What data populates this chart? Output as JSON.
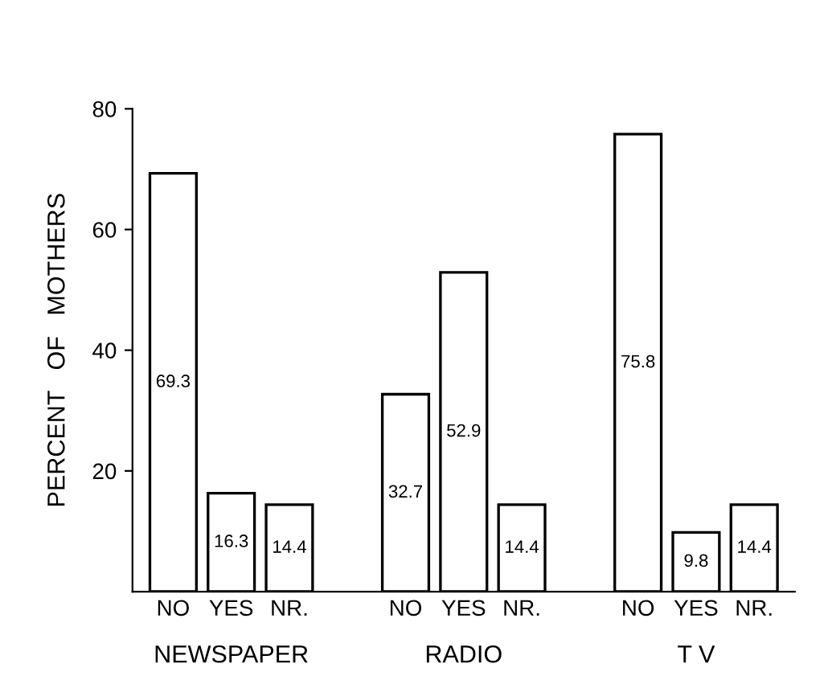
{
  "chart_data": {
    "type": "bar",
    "ylabel": "PERCENT   OF   MOTHERS",
    "categories": [
      "NO",
      "YES",
      "NR.",
      null,
      "NO",
      "YES",
      "NR.",
      null,
      "NO",
      "YES",
      "NR."
    ],
    "values": [
      69.3,
      16.3,
      14.4,
      null,
      32.7,
      52.9,
      14.4,
      null,
      75.8,
      9.8,
      14.4
    ],
    "color": "#ffffff",
    "ylim": [
      0,
      80
    ],
    "yticks": [
      20,
      40,
      60,
      80
    ],
    "data_labels": true,
    "grid": false,
    "legend": false,
    "annotations": [
      "NEWSPAPER",
      "RADIO",
      "T V"
    ]
  }
}
